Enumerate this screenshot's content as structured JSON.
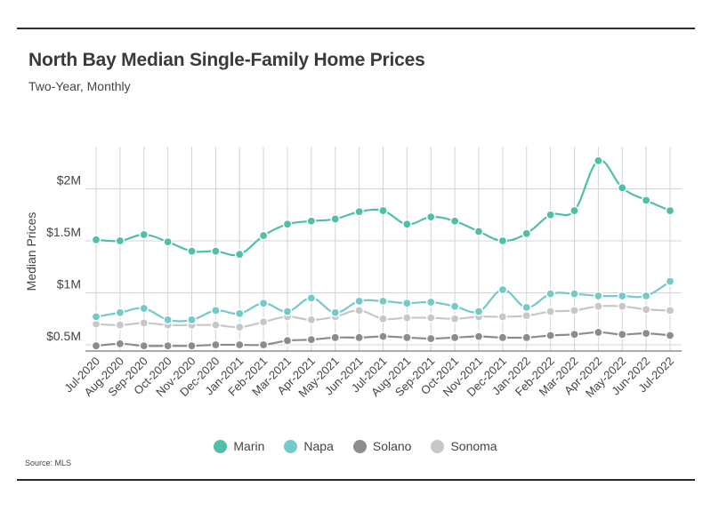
{
  "header": {
    "title": "North Bay Median Single-Family Home Prices",
    "subtitle": "Two-Year, Monthly"
  },
  "footer": {
    "source": "Source:  MLS"
  },
  "colors": {
    "Marin": "#4fbfa8",
    "Napa": "#74c9c9",
    "Solano": "#8c8c8c",
    "Sonoma": "#c7c7c7",
    "grid": "#d4d4d4",
    "frame": "#2b2b2b"
  },
  "chart_data": {
    "type": "line",
    "title": "North Bay Median Single-Family Home Prices",
    "subtitle": "Two-Year, Monthly",
    "xlabel": "",
    "ylabel": "Median Prices",
    "x": [
      "Jul-2020",
      "Aug-2020",
      "Sep-2020",
      "Oct-2020",
      "Nov-2020",
      "Dec-2020",
      "Jan-2021",
      "Feb-2021",
      "Mar-2021",
      "Apr-2021",
      "May-2021",
      "Jun-2021",
      "Jul-2021",
      "Aug-2021",
      "Sep-2021",
      "Oct-2021",
      "Nov-2021",
      "Dec-2021",
      "Jan-2022",
      "Feb-2022",
      "Mar-2022",
      "Apr-2022",
      "May-2022",
      "Jun-2022",
      "Jul-2022"
    ],
    "yticks": [
      500000,
      1000000,
      1500000,
      2000000
    ],
    "ytick_labels": [
      "$0.5M",
      "$1M",
      "$1.5M",
      "$2M"
    ],
    "ylim": [
      400000,
      2600000
    ],
    "grid": true,
    "legend": "bottom-center",
    "series": [
      {
        "name": "Marin",
        "values": [
          1510000,
          1500000,
          1560000,
          1490000,
          1400000,
          1400000,
          1370000,
          1550000,
          1660000,
          1690000,
          1710000,
          1780000,
          1790000,
          1660000,
          1730000,
          1690000,
          1590000,
          1500000,
          1570000,
          1750000,
          1790000,
          2270000,
          2010000,
          1890000,
          1790000
        ]
      },
      {
        "name": "Napa",
        "values": [
          770000,
          810000,
          850000,
          740000,
          740000,
          830000,
          800000,
          900000,
          820000,
          950000,
          810000,
          920000,
          920000,
          900000,
          910000,
          870000,
          820000,
          1030000,
          860000,
          990000,
          990000,
          970000,
          970000,
          970000,
          1110000
        ]
      },
      {
        "name": "Solano",
        "values": [
          490000,
          510000,
          490000,
          490000,
          490000,
          500000,
          500000,
          500000,
          540000,
          550000,
          570000,
          570000,
          580000,
          570000,
          560000,
          570000,
          580000,
          570000,
          570000,
          590000,
          600000,
          620000,
          600000,
          610000,
          590000
        ]
      },
      {
        "name": "Sonoma",
        "values": [
          700000,
          690000,
          710000,
          690000,
          690000,
          690000,
          670000,
          720000,
          770000,
          740000,
          770000,
          830000,
          750000,
          760000,
          760000,
          750000,
          770000,
          770000,
          780000,
          820000,
          830000,
          870000,
          870000,
          840000,
          830000
        ]
      }
    ]
  }
}
